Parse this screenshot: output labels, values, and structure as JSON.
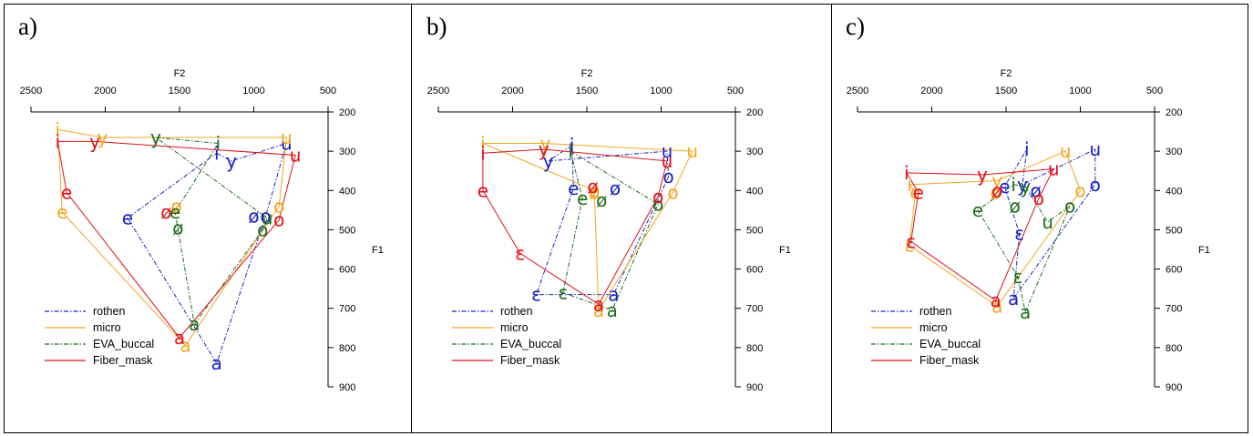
{
  "colors": {
    "rothen": "#1a22c8",
    "micro": "#f5a623",
    "EVA_buccal": "#1f6e1f",
    "Fiber_mask": "#e0101a"
  },
  "chart_data": [
    {
      "type": "scatter",
      "panel_label": "a)",
      "xlabel": "F2",
      "ylabel": "F1",
      "xlim": [
        2500,
        500
      ],
      "ylim": [
        200,
        900
      ],
      "x_ticks": [
        2500,
        2000,
        1500,
        1000,
        500
      ],
      "y_ticks": [
        200,
        300,
        400,
        500,
        600,
        700,
        800,
        900
      ],
      "legend": [
        "rothen",
        "micro",
        "EVA_buccal",
        "Fiber_mask"
      ],
      "series": [
        {
          "name": "rothen",
          "style": "dashdot",
          "points": [
            {
              "v": "i",
              "F2": 1250,
              "F1": 305
            },
            {
              "v": "y",
              "F2": 1150,
              "F1": 325
            },
            {
              "v": "u",
              "F2": 780,
              "F1": 280
            },
            {
              "v": "e",
              "F2": 1850,
              "F1": 470
            },
            {
              "v": "ø",
              "F2": 1000,
              "F1": 465
            },
            {
              "v": "o",
              "F2": 920,
              "F1": 465
            },
            {
              "v": "a",
              "F2": 1250,
              "F1": 840
            }
          ]
        },
        {
          "name": "micro",
          "style": "solid",
          "points": [
            {
              "v": "i",
              "F2": 2320,
              "F1": 245
            },
            {
              "v": "y",
              "F2": 2020,
              "F1": 265
            },
            {
              "v": "u",
              "F2": 780,
              "F1": 265
            },
            {
              "v": "e",
              "F2": 2290,
              "F1": 455
            },
            {
              "v": "ø",
              "F2": 1520,
              "F1": 440
            },
            {
              "v": "o",
              "F2": 830,
              "F1": 440
            },
            {
              "v": "a",
              "F2": 1460,
              "F1": 795
            }
          ]
        },
        {
          "name": "EVA_buccal",
          "style": "dashdot",
          "points": [
            {
              "v": "i",
              "F2": 1240,
              "F1": 280
            },
            {
              "v": "y",
              "F2": 1660,
              "F1": 265
            },
            {
              "v": "u",
              "F2": 910,
              "F1": 470
            },
            {
              "v": "e",
              "F2": 1530,
              "F1": 455
            },
            {
              "v": "ø",
              "F2": 1510,
              "F1": 495
            },
            {
              "v": "o",
              "F2": 940,
              "F1": 500
            },
            {
              "v": "a",
              "F2": 1400,
              "F1": 740
            }
          ]
        },
        {
          "name": "Fiber_mask",
          "style": "solid",
          "points": [
            {
              "v": "i",
              "F2": 2320,
              "F1": 275
            },
            {
              "v": "y",
              "F2": 2070,
              "F1": 275
            },
            {
              "v": "u",
              "F2": 720,
              "F1": 310
            },
            {
              "v": "e",
              "F2": 2260,
              "F1": 405
            },
            {
              "v": "ø",
              "F2": 1590,
              "F1": 455
            },
            {
              "v": "o",
              "F2": 830,
              "F1": 475
            },
            {
              "v": "a",
              "F2": 1500,
              "F1": 775
            }
          ]
        }
      ]
    },
    {
      "type": "scatter",
      "panel_label": "b)",
      "xlabel": "F2",
      "ylabel": "F1",
      "xlim": [
        2500,
        500
      ],
      "ylim": [
        200,
        900
      ],
      "x_ticks": [
        2500,
        2000,
        1500,
        1000,
        500
      ],
      "y_ticks": [
        200,
        300,
        400,
        500,
        600,
        700,
        800,
        900
      ],
      "legend": [
        "rothen",
        "micro",
        "EVA_buccal",
        "Fiber_mask"
      ],
      "series": [
        {
          "name": "rothen",
          "style": "dashdot",
          "points": [
            {
              "v": "i",
              "F2": 1600,
              "F1": 285
            },
            {
              "v": "y",
              "F2": 1760,
              "F1": 325
            },
            {
              "v": "u",
              "F2": 960,
              "F1": 300
            },
            {
              "v": "e",
              "F2": 1590,
              "F1": 395
            },
            {
              "v": "ø",
              "F2": 1310,
              "F1": 395
            },
            {
              "v": "o",
              "F2": 950,
              "F1": 365
            },
            {
              "v": "ɛ",
              "F2": 1840,
              "F1": 665
            },
            {
              "v": "a",
              "F2": 1320,
              "F1": 665
            }
          ]
        },
        {
          "name": "micro",
          "style": "solid",
          "points": [
            {
              "v": "i",
              "F2": 2200,
              "F1": 280
            },
            {
              "v": "y",
              "F2": 1780,
              "F1": 280
            },
            {
              "v": "u",
              "F2": 790,
              "F1": 300
            },
            {
              "v": "e",
              "F2": 1450,
              "F1": 400
            },
            {
              "v": "ø",
              "F2": 1450,
              "F1": 405
            },
            {
              "v": "o",
              "F2": 920,
              "F1": 405
            },
            {
              "v": "a",
              "F2": 1420,
              "F1": 705
            }
          ]
        },
        {
          "name": "EVA_buccal",
          "style": "dashdot",
          "points": [
            {
              "v": "i",
              "F2": 1610,
              "F1": 300
            },
            {
              "v": "e",
              "F2": 1530,
              "F1": 420
            },
            {
              "v": "ø",
              "F2": 1400,
              "F1": 425
            },
            {
              "v": "o",
              "F2": 1020,
              "F1": 435
            },
            {
              "v": "ɛ",
              "F2": 1660,
              "F1": 660
            },
            {
              "v": "a",
              "F2": 1330,
              "F1": 705
            }
          ]
        },
        {
          "name": "Fiber_mask",
          "style": "solid",
          "points": [
            {
              "v": "i",
              "F2": 2200,
              "F1": 305
            },
            {
              "v": "y",
              "F2": 1790,
              "F1": 295
            },
            {
              "v": "u",
              "F2": 960,
              "F1": 325
            },
            {
              "v": "e",
              "F2": 2200,
              "F1": 400
            },
            {
              "v": "ø",
              "F2": 1460,
              "F1": 390
            },
            {
              "v": "o",
              "F2": 1020,
              "F1": 415
            },
            {
              "v": "ɛ",
              "F2": 1950,
              "F1": 560
            },
            {
              "v": "a",
              "F2": 1420,
              "F1": 690
            }
          ]
        }
      ]
    },
    {
      "type": "scatter",
      "panel_label": "c)",
      "xlabel": "F2",
      "ylabel": "F1",
      "xlim": [
        2500,
        500
      ],
      "ylim": [
        200,
        900
      ],
      "x_ticks": [
        2500,
        2000,
        1500,
        1000,
        500
      ],
      "y_ticks": [
        200,
        300,
        400,
        500,
        600,
        700,
        800,
        900
      ],
      "legend": [
        "rothen",
        "micro",
        "EVA_buccal",
        "Fiber_mask"
      ],
      "series": [
        {
          "name": "rothen",
          "style": "dashdot",
          "points": [
            {
              "v": "i",
              "F2": 1360,
              "F1": 295
            },
            {
              "v": "y",
              "F2": 1390,
              "F1": 385
            },
            {
              "v": "u",
              "F2": 900,
              "F1": 295
            },
            {
              "v": "e",
              "F2": 1510,
              "F1": 390
            },
            {
              "v": "ø",
              "F2": 1300,
              "F1": 400
            },
            {
              "v": "o",
              "F2": 900,
              "F1": 385
            },
            {
              "v": "ɛ",
              "F2": 1410,
              "F1": 510
            },
            {
              "v": "a",
              "F2": 1450,
              "F1": 675
            }
          ]
        },
        {
          "name": "micro",
          "style": "solid",
          "points": [
            {
              "v": "i",
              "F2": 2150,
              "F1": 385
            },
            {
              "v": "y",
              "F2": 1560,
              "F1": 375
            },
            {
              "v": "u",
              "F2": 1100,
              "F1": 300
            },
            {
              "v": "e",
              "F2": 2110,
              "F1": 405
            },
            {
              "v": "ø",
              "F2": 1570,
              "F1": 405
            },
            {
              "v": "o",
              "F2": 1000,
              "F1": 400
            },
            {
              "v": "ɛ",
              "F2": 2150,
              "F1": 540
            },
            {
              "v": "a",
              "F2": 1560,
              "F1": 695
            }
          ]
        },
        {
          "name": "EVA_buccal",
          "style": "dashdot",
          "points": [
            {
              "v": "i",
              "F2": 1450,
              "F1": 385
            },
            {
              "v": "y",
              "F2": 1370,
              "F1": 390
            },
            {
              "v": "u",
              "F2": 1220,
              "F1": 480
            },
            {
              "v": "e",
              "F2": 1690,
              "F1": 450
            },
            {
              "v": "ø",
              "F2": 1440,
              "F1": 440
            },
            {
              "v": "o",
              "F2": 1070,
              "F1": 440
            },
            {
              "v": "ɛ",
              "F2": 1420,
              "F1": 620
            },
            {
              "v": "a",
              "F2": 1370,
              "F1": 710
            }
          ]
        },
        {
          "name": "Fiber_mask",
          "style": "solid",
          "points": [
            {
              "v": "i",
              "F2": 2170,
              "F1": 355
            },
            {
              "v": "y",
              "F2": 1660,
              "F1": 360
            },
            {
              "v": "u",
              "F2": 1180,
              "F1": 345
            },
            {
              "v": "e",
              "F2": 2090,
              "F1": 405
            },
            {
              "v": "ø",
              "F2": 1560,
              "F1": 400
            },
            {
              "v": "o",
              "F2": 1280,
              "F1": 420
            },
            {
              "v": "ɛ",
              "F2": 2140,
              "F1": 530
            },
            {
              "v": "a",
              "F2": 1570,
              "F1": 680
            }
          ]
        }
      ]
    }
  ]
}
